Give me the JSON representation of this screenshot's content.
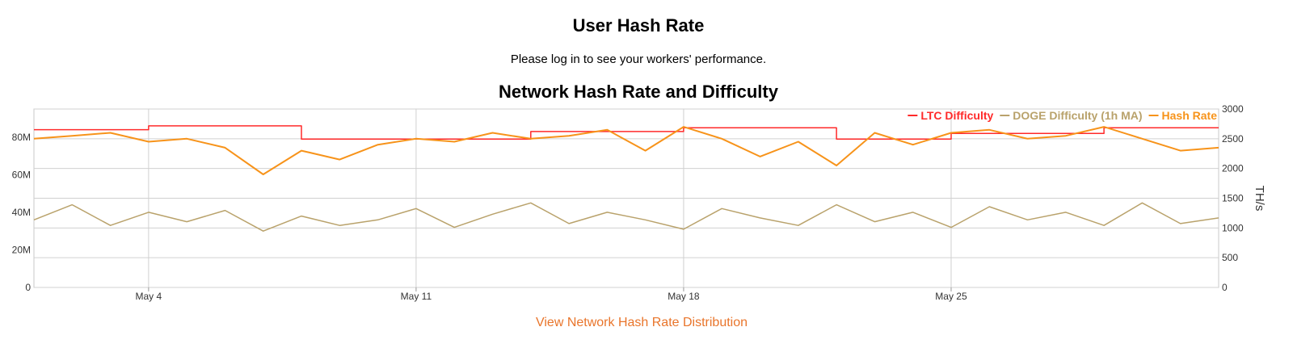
{
  "page": {
    "title": "User Hash Rate",
    "subtitle": "Please log in to see your workers' performance.",
    "link": "View Network Hash Rate Distribution"
  },
  "colors": {
    "ltc": "#ff2a2a",
    "doge": "#b9a26b",
    "hash": "#f7931a",
    "grid": "#d0d0d0",
    "link": "#e9752b"
  },
  "chart_data": {
    "type": "line",
    "title": "Network Hash Rate and Difficulty",
    "x_type": "date",
    "x_range": [
      "2024-05-01",
      "2024-06-01"
    ],
    "x_ticks": [
      {
        "date": "2024-05-04",
        "label": "May 4"
      },
      {
        "date": "2024-05-11",
        "label": "May 11"
      },
      {
        "date": "2024-05-18",
        "label": "May 18"
      },
      {
        "date": "2024-05-25",
        "label": "May 25"
      }
    ],
    "y_left": {
      "range": [
        0,
        95000000
      ],
      "ticks": [
        "0",
        "20M",
        "40M",
        "60M",
        "80M"
      ],
      "values": [
        0,
        20000000,
        40000000,
        60000000,
        80000000
      ]
    },
    "y_right": {
      "label": "TH/s",
      "range": [
        0,
        3000
      ],
      "ticks": [
        "0",
        "500",
        "1000",
        "1500",
        "2000",
        "2500",
        "3000"
      ],
      "values": [
        0,
        500,
        1000,
        1500,
        2000,
        2500,
        3000
      ]
    },
    "grid": true,
    "legend_position": "top-right",
    "series": [
      {
        "name": "LTC Difficulty",
        "axis": "left",
        "step": true,
        "x": [
          "2024-05-01",
          "2024-05-04",
          "2024-05-04",
          "2024-05-08",
          "2024-05-08",
          "2024-05-14",
          "2024-05-14",
          "2024-05-18",
          "2024-05-18",
          "2024-05-22",
          "2024-05-22",
          "2024-05-25",
          "2024-05-25",
          "2024-05-29",
          "2024-05-29",
          "2024-06-01"
        ],
        "values": [
          84000000,
          84000000,
          86000000,
          86000000,
          79000000,
          79000000,
          83000000,
          83000000,
          85000000,
          85000000,
          79000000,
          79000000,
          82000000,
          82000000,
          85000000,
          85000000
        ]
      },
      {
        "name": "DOGE Difficulty (1h MA)",
        "axis": "left",
        "x": [
          "2024-05-01",
          "2024-05-02",
          "2024-05-03",
          "2024-05-04",
          "2024-05-05",
          "2024-05-06",
          "2024-05-07",
          "2024-05-08",
          "2024-05-09",
          "2024-05-10",
          "2024-05-11",
          "2024-05-12",
          "2024-05-13",
          "2024-05-14",
          "2024-05-15",
          "2024-05-16",
          "2024-05-17",
          "2024-05-18",
          "2024-05-19",
          "2024-05-20",
          "2024-05-21",
          "2024-05-22",
          "2024-05-23",
          "2024-05-24",
          "2024-05-25",
          "2024-05-26",
          "2024-05-27",
          "2024-05-28",
          "2024-05-29",
          "2024-05-30",
          "2024-05-31",
          "2024-06-01"
        ],
        "values": [
          36000000,
          44000000,
          33000000,
          40000000,
          35000000,
          41000000,
          30000000,
          38000000,
          33000000,
          36000000,
          42000000,
          32000000,
          39000000,
          45000000,
          34000000,
          40000000,
          36000000,
          31000000,
          42000000,
          37000000,
          33000000,
          44000000,
          35000000,
          40000000,
          32000000,
          43000000,
          36000000,
          40000000,
          33000000,
          45000000,
          34000000,
          37000000
        ]
      },
      {
        "name": "Hash Rate",
        "axis": "right",
        "x": [
          "2024-05-01",
          "2024-05-02",
          "2024-05-03",
          "2024-05-04",
          "2024-05-05",
          "2024-05-06",
          "2024-05-07",
          "2024-05-08",
          "2024-05-09",
          "2024-05-10",
          "2024-05-11",
          "2024-05-12",
          "2024-05-13",
          "2024-05-14",
          "2024-05-15",
          "2024-05-16",
          "2024-05-17",
          "2024-05-18",
          "2024-05-19",
          "2024-05-20",
          "2024-05-21",
          "2024-05-22",
          "2024-05-23",
          "2024-05-24",
          "2024-05-25",
          "2024-05-26",
          "2024-05-27",
          "2024-05-28",
          "2024-05-29",
          "2024-05-30",
          "2024-05-31",
          "2024-06-01"
        ],
        "values": [
          2500,
          2550,
          2600,
          2450,
          2500,
          2350,
          1900,
          2300,
          2150,
          2400,
          2500,
          2450,
          2600,
          2500,
          2550,
          2650,
          2300,
          2700,
          2500,
          2200,
          2450,
          2050,
          2600,
          2400,
          2600,
          2650,
          2500,
          2550,
          2700,
          2500,
          2300,
          2350
        ]
      }
    ]
  }
}
